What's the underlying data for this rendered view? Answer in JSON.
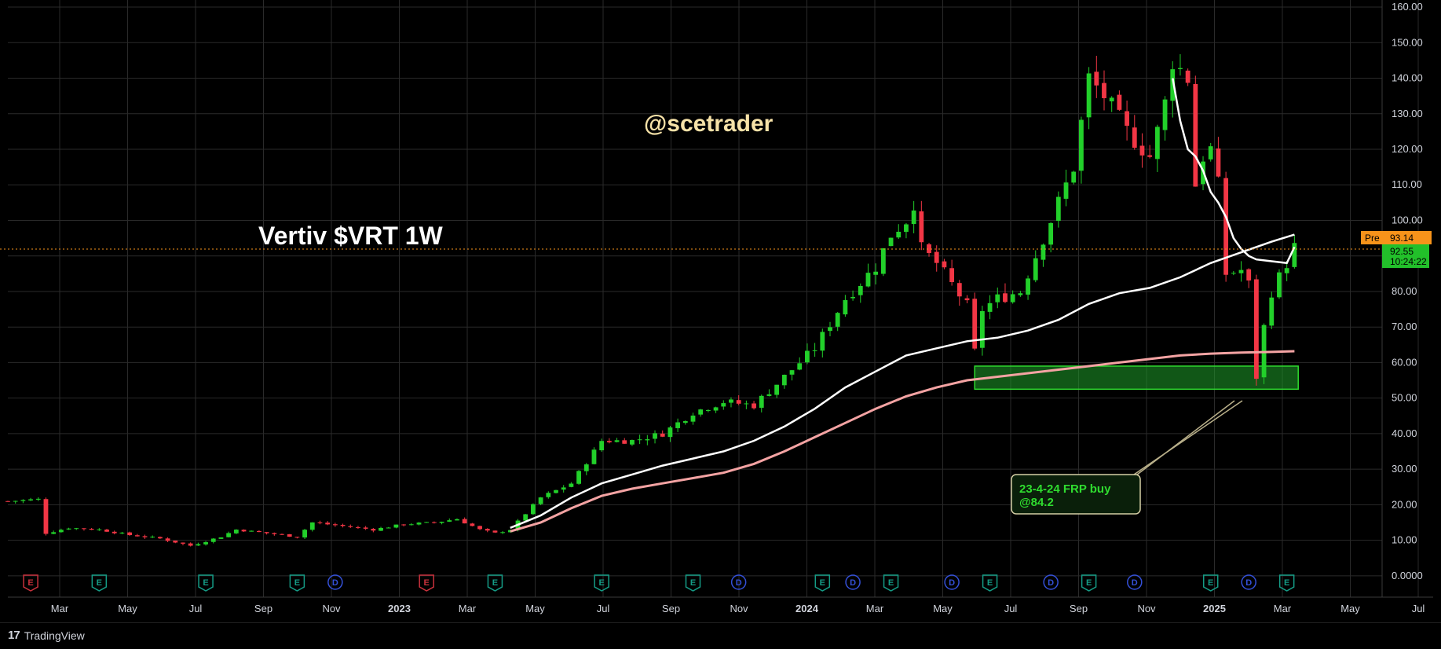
{
  "chart_data": {
    "type": "candlestick",
    "title": "Vertiv $VRT 1W",
    "watermark": "@scetrader",
    "ylim": [
      -6,
      162
    ],
    "y_ticks": [
      "0.0000",
      "10.00",
      "20.00",
      "30.00",
      "40.00",
      "50.00",
      "60.00",
      "70.00",
      "80.00",
      "90.00",
      "100.00",
      "110.00",
      "120.00",
      "130.00",
      "140.00",
      "150.00",
      "160.00"
    ],
    "x_ticks": [
      {
        "label": "Mar",
        "bold": false
      },
      {
        "label": "May",
        "bold": false
      },
      {
        "label": "Jul",
        "bold": false
      },
      {
        "label": "Sep",
        "bold": false
      },
      {
        "label": "Nov",
        "bold": false
      },
      {
        "label": "2023",
        "bold": true
      },
      {
        "label": "Mar",
        "bold": false
      },
      {
        "label": "May",
        "bold": false
      },
      {
        "label": "Jul",
        "bold": false
      },
      {
        "label": "Sep",
        "bold": false
      },
      {
        "label": "Nov",
        "bold": false
      },
      {
        "label": "2024",
        "bold": true
      },
      {
        "label": "Mar",
        "bold": false
      },
      {
        "label": "May",
        "bold": false
      },
      {
        "label": "Jul",
        "bold": false
      },
      {
        "label": "Sep",
        "bold": false
      },
      {
        "label": "Nov",
        "bold": false
      },
      {
        "label": "2025",
        "bold": true
      },
      {
        "label": "Mar",
        "bold": false
      },
      {
        "label": "May",
        "bold": false
      },
      {
        "label": "Jul",
        "bold": false
      }
    ],
    "price_lines": {
      "pre": {
        "label": "Pre",
        "value": "93.14",
        "color": "#f7931a"
      },
      "last": {
        "value": "92.55",
        "countdown": "10:24:22",
        "color": "#22c02a"
      }
    },
    "zone": {
      "from": 52.5,
      "to": 59,
      "color": "#1f9e2a"
    },
    "annotation": {
      "line1": "23-4-24 FRP buy",
      "line2": "@84.2"
    },
    "events": [
      {
        "type": "E",
        "color": "#c8313c",
        "week": 3
      },
      {
        "type": "E",
        "color": "#159c86",
        "week": 12
      },
      {
        "type": "E",
        "color": "#159c86",
        "week": 26
      },
      {
        "type": "E",
        "color": "#159c86",
        "week": 38
      },
      {
        "type": "D",
        "color": "#3450d8",
        "week": 43
      },
      {
        "type": "E",
        "color": "#c8313c",
        "week": 55
      },
      {
        "type": "E",
        "color": "#159c86",
        "week": 64
      },
      {
        "type": "E",
        "color": "#159c86",
        "week": 78
      },
      {
        "type": "E",
        "color": "#159c86",
        "week": 90
      },
      {
        "type": "D",
        "color": "#3450d8",
        "week": 96
      },
      {
        "type": "E",
        "color": "#159c86",
        "week": 107
      },
      {
        "type": "D",
        "color": "#3450d8",
        "week": 111
      },
      {
        "type": "E",
        "color": "#159c86",
        "week": 116
      },
      {
        "type": "D",
        "color": "#3450d8",
        "week": 124
      },
      {
        "type": "E",
        "color": "#159c86",
        "week": 129
      },
      {
        "type": "D",
        "color": "#3450d8",
        "week": 137
      },
      {
        "type": "E",
        "color": "#159c86",
        "week": 142
      },
      {
        "type": "D",
        "color": "#3450d8",
        "week": 148
      },
      {
        "type": "E",
        "color": "#159c86",
        "week": 158
      },
      {
        "type": "D",
        "color": "#3450d8",
        "week": 163
      },
      {
        "type": "E",
        "color": "#159c86",
        "week": 168
      }
    ],
    "close_keypoints": [
      [
        0,
        21
      ],
      [
        4,
        21.5
      ],
      [
        5,
        12
      ],
      [
        8,
        13.5
      ],
      [
        12,
        13
      ],
      [
        16,
        11.5
      ],
      [
        20,
        10.5
      ],
      [
        24,
        8.5
      ],
      [
        28,
        11
      ],
      [
        30,
        13
      ],
      [
        34,
        12
      ],
      [
        38,
        11
      ],
      [
        40,
        15
      ],
      [
        44,
        14
      ],
      [
        48,
        13
      ],
      [
        52,
        14.5
      ],
      [
        56,
        15
      ],
      [
        59,
        16
      ],
      [
        62,
        13
      ],
      [
        64,
        12
      ],
      [
        66,
        13
      ],
      [
        70,
        22
      ],
      [
        74,
        26
      ],
      [
        78,
        38
      ],
      [
        82,
        38
      ],
      [
        86,
        40
      ],
      [
        90,
        46
      ],
      [
        94,
        49
      ],
      [
        98,
        48
      ],
      [
        102,
        56
      ],
      [
        106,
        64
      ],
      [
        110,
        78
      ],
      [
        114,
        87
      ],
      [
        116,
        96
      ],
      [
        118,
        100
      ],
      [
        119,
        105
      ],
      [
        120,
        92
      ],
      [
        122,
        88
      ],
      [
        126,
        76
      ],
      [
        127,
        63
      ],
      [
        128,
        75
      ],
      [
        130,
        78
      ],
      [
        133,
        80
      ],
      [
        135,
        90
      ],
      [
        138,
        105
      ],
      [
        140,
        115
      ],
      [
        142,
        140
      ],
      [
        144,
        135
      ],
      [
        147,
        125
      ],
      [
        150,
        118
      ],
      [
        151,
        125
      ],
      [
        152,
        133
      ],
      [
        153,
        145
      ],
      [
        155,
        140
      ],
      [
        156,
        110
      ],
      [
        157,
        118
      ],
      [
        158,
        120
      ],
      [
        159,
        110
      ],
      [
        160,
        85
      ],
      [
        162,
        86
      ],
      [
        163,
        82
      ],
      [
        164,
        56
      ],
      [
        165,
        70
      ],
      [
        166,
        80
      ],
      [
        167,
        84
      ],
      [
        168,
        88
      ],
      [
        169,
        92.5
      ]
    ],
    "sma_white_keypoints": [
      [
        66,
        13.5
      ],
      [
        70,
        17
      ],
      [
        74,
        22
      ],
      [
        78,
        26
      ],
      [
        82,
        28.5
      ],
      [
        86,
        31
      ],
      [
        90,
        33
      ],
      [
        94,
        35
      ],
      [
        98,
        38
      ],
      [
        102,
        42
      ],
      [
        106,
        47
      ],
      [
        110,
        53
      ],
      [
        114,
        57.5
      ],
      [
        118,
        62
      ],
      [
        122,
        64
      ],
      [
        126,
        66
      ],
      [
        130,
        67
      ],
      [
        134,
        69
      ],
      [
        138,
        72
      ],
      [
        142,
        76.5
      ],
      [
        146,
        79.5
      ],
      [
        150,
        81
      ],
      [
        154,
        84
      ],
      [
        158,
        88
      ],
      [
        162,
        91
      ],
      [
        166,
        94
      ],
      [
        169,
        96
      ]
    ],
    "sma_pink_keypoints": [
      [
        66,
        12.5
      ],
      [
        70,
        15
      ],
      [
        74,
        19
      ],
      [
        78,
        22.5
      ],
      [
        82,
        24.5
      ],
      [
        86,
        26
      ],
      [
        90,
        27.5
      ],
      [
        94,
        29
      ],
      [
        98,
        31.5
      ],
      [
        102,
        35
      ],
      [
        106,
        39
      ],
      [
        110,
        43
      ],
      [
        114,
        47
      ],
      [
        118,
        50.5
      ],
      [
        122,
        53
      ],
      [
        126,
        55
      ],
      [
        130,
        56
      ],
      [
        134,
        57
      ],
      [
        138,
        58
      ],
      [
        142,
        59
      ],
      [
        146,
        60
      ],
      [
        150,
        61
      ],
      [
        154,
        62
      ],
      [
        158,
        62.5
      ],
      [
        162,
        62.8
      ],
      [
        166,
        63
      ],
      [
        169,
        63.2
      ]
    ]
  }
}
